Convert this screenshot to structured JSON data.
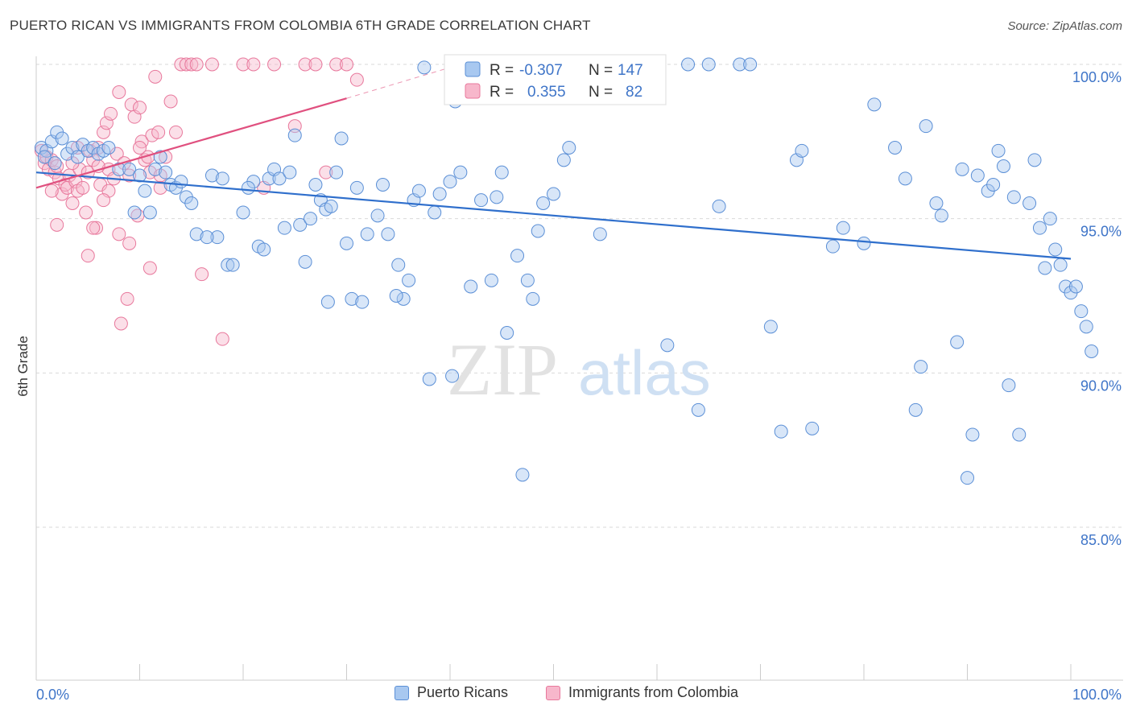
{
  "title": "PUERTO RICAN VS IMMIGRANTS FROM COLOMBIA 6TH GRADE CORRELATION CHART",
  "source": "Source: ZipAtlas.com",
  "watermark": {
    "zip": "ZIP",
    "atlas": "atlas"
  },
  "colors": {
    "blue_fill": "#a8c8f0",
    "blue_stroke": "#5b8fd6",
    "blue_line": "#2f6fcc",
    "pink_fill": "#f7b7cb",
    "pink_stroke": "#e8789c",
    "pink_line": "#e0507f",
    "axis_text": "#3f75c8",
    "grid": "#d9d9d9"
  },
  "legend_top": {
    "rows": [
      {
        "r_label": "R =",
        "r_value": "-0.307",
        "n_label": "N =",
        "n_value": "147",
        "series": "blue"
      },
      {
        "r_label": "R =",
        "r_value": "0.355",
        "n_label": "N =",
        "n_value": "82",
        "series": "pink"
      }
    ]
  },
  "chart_data": {
    "type": "scatter",
    "title": "PUERTO RICAN VS IMMIGRANTS FROM COLOMBIA 6TH GRADE CORRELATION CHART",
    "xlabel": "",
    "ylabel": "6th Grade",
    "x_ticks": [
      "0.0%",
      "100.0%"
    ],
    "y_ticks": [
      "100.0%",
      "95.0%",
      "90.0%",
      "85.0%"
    ],
    "xlim": [
      0,
      100
    ],
    "ylim": [
      80.0,
      100.8
    ],
    "grid": true,
    "legend_position": "bottom",
    "series": [
      {
        "name": "Puerto Ricans",
        "color": "blue",
        "trend": {
          "x": [
            0,
            100
          ],
          "y": [
            96.5,
            93.7
          ]
        },
        "points": [
          [
            0.5,
            97.3
          ],
          [
            1,
            97.2
          ],
          [
            1.5,
            97.5
          ],
          [
            2,
            97.8
          ],
          [
            2.5,
            97.6
          ],
          [
            3,
            97.1
          ],
          [
            3.5,
            97.3
          ],
          [
            4,
            97.0
          ],
          [
            4.5,
            97.4
          ],
          [
            5,
            97.2
          ],
          [
            5.5,
            97.3
          ],
          [
            6,
            97.1
          ],
          [
            6.5,
            97.2
          ],
          [
            7,
            97.3
          ],
          [
            8,
            96.6
          ],
          [
            9,
            96.6
          ],
          [
            10,
            96.4
          ],
          [
            11.5,
            96.6
          ],
          [
            12,
            97.0
          ],
          [
            12.5,
            96.5
          ],
          [
            13,
            96.1
          ],
          [
            13.5,
            96.0
          ],
          [
            14.5,
            95.7
          ],
          [
            15,
            95.5
          ],
          [
            15.5,
            94.5
          ],
          [
            17,
            96.4
          ],
          [
            17.5,
            94.4
          ],
          [
            18.5,
            93.5
          ],
          [
            19,
            93.5
          ],
          [
            20,
            95.2
          ],
          [
            21,
            96.2
          ],
          [
            21.5,
            94.1
          ],
          [
            22,
            94.0
          ],
          [
            22.5,
            96.3
          ],
          [
            23,
            96.6
          ],
          [
            23.5,
            96.3
          ],
          [
            24,
            94.7
          ],
          [
            24.5,
            96.5
          ],
          [
            25,
            97.7
          ],
          [
            25.5,
            94.8
          ],
          [
            26,
            93.6
          ],
          [
            26.5,
            95.0
          ],
          [
            27,
            96.1
          ],
          [
            27.5,
            95.6
          ],
          [
            28,
            95.3
          ],
          [
            28.5,
            95.4
          ],
          [
            29,
            96.5
          ],
          [
            29.5,
            97.6
          ],
          [
            30,
            94.2
          ],
          [
            30.5,
            92.4
          ],
          [
            31,
            96.0
          ],
          [
            31.5,
            92.3
          ],
          [
            32,
            94.5
          ],
          [
            33,
            95.1
          ],
          [
            33.5,
            96.1
          ],
          [
            34,
            94.5
          ],
          [
            35,
            93.5
          ],
          [
            35.5,
            92.4
          ],
          [
            36,
            93.0
          ],
          [
            36.5,
            95.6
          ],
          [
            37,
            95.9
          ],
          [
            37.5,
            99.9
          ],
          [
            38,
            89.8
          ],
          [
            38.5,
            95.2
          ],
          [
            40,
            96.2
          ],
          [
            40.5,
            98.8
          ],
          [
            41,
            96.5
          ],
          [
            42,
            92.8
          ],
          [
            43,
            95.6
          ],
          [
            44,
            93.0
          ],
          [
            44.5,
            95.7
          ],
          [
            45,
            96.5
          ],
          [
            45.5,
            91.3
          ],
          [
            46.5,
            93.8
          ],
          [
            47,
            86.7
          ],
          [
            47.5,
            93.0
          ],
          [
            48,
            92.4
          ],
          [
            48.5,
            94.6
          ],
          [
            49,
            95.5
          ],
          [
            50,
            95.8
          ],
          [
            51,
            96.9
          ],
          [
            51.5,
            97.3
          ],
          [
            54,
            100.0
          ],
          [
            54.5,
            94.5
          ],
          [
            57.5,
            100.0
          ],
          [
            61,
            90.9
          ],
          [
            63,
            100.0
          ],
          [
            64,
            88.8
          ],
          [
            65,
            100.0
          ],
          [
            66,
            95.4
          ],
          [
            68,
            100.0
          ],
          [
            69,
            100.0
          ],
          [
            71,
            91.5
          ],
          [
            72,
            88.1
          ],
          [
            73.5,
            96.9
          ],
          [
            74,
            97.2
          ],
          [
            75,
            88.2
          ],
          [
            77,
            94.1
          ],
          [
            78,
            94.7
          ],
          [
            80,
            94.2
          ],
          [
            81,
            98.7
          ],
          [
            83,
            97.3
          ],
          [
            84,
            96.3
          ],
          [
            85,
            88.8
          ],
          [
            85.5,
            90.2
          ],
          [
            86,
            98.0
          ],
          [
            87,
            95.5
          ],
          [
            87.5,
            95.1
          ],
          [
            89,
            91.0
          ],
          [
            89.5,
            96.6
          ],
          [
            90,
            86.6
          ],
          [
            90.5,
            88.0
          ],
          [
            91,
            96.4
          ],
          [
            92,
            95.9
          ],
          [
            92.5,
            96.1
          ],
          [
            93,
            97.2
          ],
          [
            93.5,
            96.7
          ],
          [
            94,
            89.6
          ],
          [
            94.5,
            95.7
          ],
          [
            95,
            88.0
          ],
          [
            96,
            95.5
          ],
          [
            96.5,
            96.9
          ],
          [
            97,
            94.7
          ],
          [
            97.5,
            93.4
          ],
          [
            98,
            95.0
          ],
          [
            98.5,
            94.0
          ],
          [
            99,
            93.5
          ],
          [
            99.5,
            92.8
          ],
          [
            100,
            92.6
          ],
          [
            100.5,
            92.8
          ],
          [
            101,
            92.0
          ],
          [
            101.5,
            91.5
          ],
          [
            102,
            90.7
          ],
          [
            0.8,
            97.0
          ],
          [
            1.8,
            96.8
          ],
          [
            9.5,
            95.2
          ],
          [
            10.5,
            95.9
          ],
          [
            11,
            95.2
          ],
          [
            14,
            96.2
          ],
          [
            16.5,
            94.4
          ],
          [
            18,
            96.3
          ],
          [
            20.5,
            96.0
          ],
          [
            28.2,
            92.3
          ],
          [
            34.8,
            92.5
          ],
          [
            39,
            95.8
          ],
          [
            40.2,
            89.9
          ],
          [
            52,
            99.7
          ]
        ]
      },
      {
        "name": "Immigrants from Colombia",
        "color": "pink",
        "trend": {
          "x": [
            0,
            30
          ],
          "y": [
            96.0,
            98.9
          ]
        },
        "trend_dashed": {
          "x": [
            30,
            40
          ],
          "y": [
            98.9,
            99.9
          ]
        },
        "points": [
          [
            0.5,
            97.2
          ],
          [
            0.8,
            96.8
          ],
          [
            1,
            97.0
          ],
          [
            1.2,
            96.6
          ],
          [
            1.5,
            96.9
          ],
          [
            1.8,
            96.5
          ],
          [
            2,
            96.7
          ],
          [
            2.2,
            96.3
          ],
          [
            2.5,
            95.8
          ],
          [
            2.8,
            96.1
          ],
          [
            3,
            96.0
          ],
          [
            3.2,
            96.4
          ],
          [
            3.5,
            95.5
          ],
          [
            3.8,
            96.2
          ],
          [
            4,
            95.9
          ],
          [
            4.2,
            96.6
          ],
          [
            4.5,
            96.0
          ],
          [
            4.8,
            95.2
          ],
          [
            5,
            96.5
          ],
          [
            5.2,
            97.2
          ],
          [
            5.5,
            96.9
          ],
          [
            5.8,
            94.7
          ],
          [
            6,
            97.3
          ],
          [
            6.2,
            96.1
          ],
          [
            6.5,
            97.8
          ],
          [
            6.8,
            98.1
          ],
          [
            7,
            96.6
          ],
          [
            7.2,
            98.4
          ],
          [
            7.5,
            96.3
          ],
          [
            7.8,
            97.1
          ],
          [
            8,
            94.5
          ],
          [
            8.5,
            96.8
          ],
          [
            9,
            96.4
          ],
          [
            9.2,
            98.7
          ],
          [
            9.5,
            98.3
          ],
          [
            9.8,
            95.1
          ],
          [
            10,
            98.6
          ],
          [
            10.2,
            97.5
          ],
          [
            10.5,
            96.9
          ],
          [
            10.8,
            97.0
          ],
          [
            11,
            96.5
          ],
          [
            11.2,
            97.7
          ],
          [
            11.5,
            99.6
          ],
          [
            11.8,
            97.8
          ],
          [
            12,
            96.4
          ],
          [
            12.5,
            97.0
          ],
          [
            13,
            98.8
          ],
          [
            13.5,
            97.8
          ],
          [
            14,
            100.0
          ],
          [
            14.5,
            100.0
          ],
          [
            15,
            100.0
          ],
          [
            15.5,
            100.0
          ],
          [
            16,
            93.2
          ],
          [
            17,
            100.0
          ],
          [
            18,
            91.1
          ],
          [
            20,
            100.0
          ],
          [
            21,
            100.0
          ],
          [
            22,
            96.0
          ],
          [
            23,
            100.0
          ],
          [
            25,
            98.0
          ],
          [
            26,
            100.0
          ],
          [
            27,
            100.0
          ],
          [
            28,
            96.5
          ],
          [
            29,
            100.0
          ],
          [
            30,
            100.0
          ],
          [
            31,
            99.5
          ],
          [
            5,
            93.8
          ],
          [
            8.2,
            91.6
          ],
          [
            8.8,
            92.4
          ],
          [
            11,
            93.4
          ],
          [
            6,
            96.7
          ],
          [
            7,
            95.9
          ],
          [
            9,
            94.2
          ],
          [
            1.5,
            95.9
          ],
          [
            2,
            94.8
          ],
          [
            3.5,
            96.8
          ],
          [
            4,
            97.3
          ],
          [
            5.5,
            94.7
          ],
          [
            6.5,
            95.6
          ],
          [
            8,
            99.1
          ],
          [
            10,
            97.3
          ],
          [
            12,
            96.0
          ]
        ]
      }
    ]
  },
  "legend_bottom": {
    "items": [
      {
        "label": "Puerto Ricans",
        "color": "blue"
      },
      {
        "label": "Immigrants from Colombia",
        "color": "pink"
      }
    ]
  }
}
